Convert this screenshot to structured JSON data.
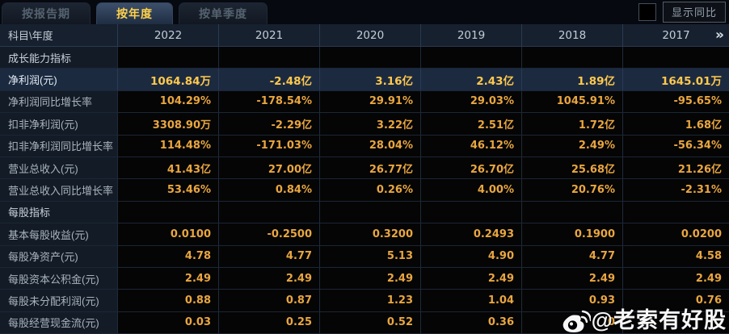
{
  "tabs": [
    {
      "label": "按报告期",
      "active": false
    },
    {
      "label": "按年度",
      "active": true
    },
    {
      "label": "按单季度",
      "active": false
    }
  ],
  "controls": {
    "show_yoy_label": "显示同比",
    "checkbox_checked": false
  },
  "table": {
    "corner_label": "科目\\年度",
    "years": [
      "2022",
      "2021",
      "2020",
      "2019",
      "2018",
      "2017"
    ],
    "more_icon": "»",
    "rows": [
      {
        "type": "section",
        "label": "成长能力指标",
        "values": [
          "",
          "",
          "",
          "",
          "",
          ""
        ]
      },
      {
        "type": "highlight",
        "label": "净利润(元)",
        "values": [
          "1064.84万",
          "-2.48亿",
          "3.16亿",
          "2.43亿",
          "1.89亿",
          "1645.01万"
        ]
      },
      {
        "type": "normal",
        "label": "净利润同比增长率",
        "values": [
          "104.29%",
          "-178.54%",
          "29.91%",
          "29.03%",
          "1045.91%",
          "-95.65%"
        ]
      },
      {
        "type": "normal",
        "label": "扣非净利润(元)",
        "values": [
          "3308.90万",
          "-2.29亿",
          "3.22亿",
          "2.51亿",
          "1.72亿",
          "1.68亿"
        ]
      },
      {
        "type": "normal",
        "label": "扣非净利润同比增长率",
        "values": [
          "114.48%",
          "-171.03%",
          "28.04%",
          "46.12%",
          "2.49%",
          "-56.34%"
        ]
      },
      {
        "type": "normal",
        "label": "营业总收入(元)",
        "values": [
          "41.43亿",
          "27.00亿",
          "26.77亿",
          "26.70亿",
          "25.68亿",
          "21.26亿"
        ]
      },
      {
        "type": "normal",
        "label": "营业总收入同比增长率",
        "values": [
          "53.46%",
          "0.84%",
          "0.26%",
          "4.00%",
          "20.76%",
          "-2.31%"
        ]
      },
      {
        "type": "section",
        "label": "每股指标",
        "values": [
          "",
          "",
          "",
          "",
          "",
          ""
        ]
      },
      {
        "type": "normal",
        "label": "基本每股收益(元)",
        "values": [
          "0.0100",
          "-0.2500",
          "0.3200",
          "0.2493",
          "0.1900",
          "0.0200"
        ]
      },
      {
        "type": "normal",
        "label": "每股净资产(元)",
        "values": [
          "4.78",
          "4.77",
          "5.13",
          "4.90",
          "4.77",
          "4.58"
        ]
      },
      {
        "type": "normal",
        "label": "每股资本公积金(元)",
        "values": [
          "2.49",
          "2.49",
          "2.49",
          "2.49",
          "2.49",
          "2.49"
        ]
      },
      {
        "type": "normal",
        "label": "每股未分配利润(元)",
        "values": [
          "0.88",
          "0.87",
          "1.23",
          "1.04",
          "0.93",
          "0.76"
        ]
      },
      {
        "type": "normal",
        "label": "每股经营现金流(元)",
        "values": [
          "0.03",
          "0.25",
          "0.52",
          "0.36",
          "0",
          ""
        ]
      }
    ]
  },
  "watermark": {
    "text": "@老索有好股",
    "icon": "weibo-icon"
  },
  "colors": {
    "accent_yellow": "#ffd24a",
    "value_orange": "#e9a640",
    "highlight_value_yellow": "#ffc94d",
    "highlight_row_bg": "#1c2a40",
    "header_bg": "#16202e",
    "label_bg": "#131b26",
    "grid_line": "#1e2b3d"
  }
}
